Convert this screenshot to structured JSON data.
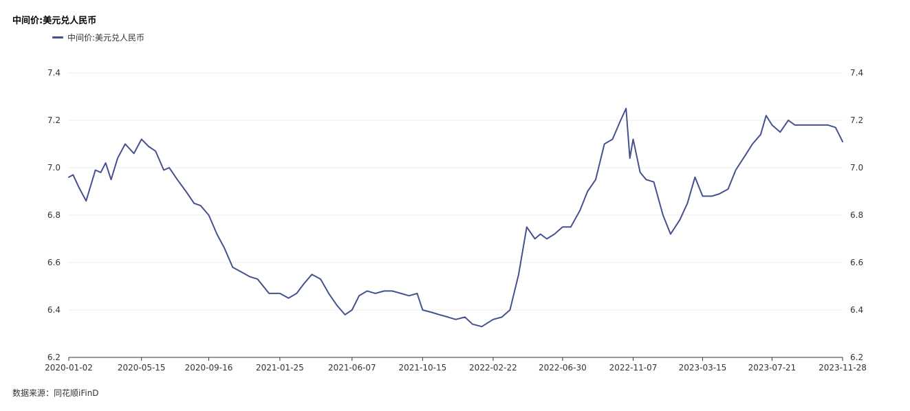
{
  "title": "中间价:美元兑人民币",
  "source": "数据来源：同花顺iFinD",
  "colors": {
    "series": "#45508f",
    "grid": "#eeeeee",
    "axis": "#333333"
  },
  "chart_data": {
    "type": "line",
    "title": "中间价:美元兑人民币",
    "legend_position": "top-left",
    "grid": true,
    "ylim": [
      6.2,
      7.4
    ],
    "yticks": [
      "7.4",
      "7.2",
      "7.0",
      "6.8",
      "6.6",
      "6.4",
      "6.2"
    ],
    "yticks_right": [
      "7.4",
      "7.2",
      "7.0",
      "6.8",
      "6.6",
      "6.4",
      "6.2"
    ],
    "xticks": [
      "2020-01-02",
      "2020-05-15",
      "2020-09-16",
      "2021-01-25",
      "2021-06-07",
      "2021-10-15",
      "2022-02-22",
      "2022-06-30",
      "2022-11-07",
      "2023-03-15",
      "2023-07-21",
      "2023-11-28"
    ],
    "series": [
      {
        "name": "中间价:美元兑人民币",
        "x": [
          "2020-01-02",
          "2020-01-10",
          "2020-01-20",
          "2020-02-03",
          "2020-02-20",
          "2020-03-01",
          "2020-03-10",
          "2020-03-20",
          "2020-04-01",
          "2020-04-15",
          "2020-05-01",
          "2020-05-15",
          "2020-05-28",
          "2020-06-10",
          "2020-06-25",
          "2020-07-05",
          "2020-07-20",
          "2020-08-05",
          "2020-08-20",
          "2020-09-01",
          "2020-09-16",
          "2020-10-01",
          "2020-10-15",
          "2020-10-30",
          "2020-11-15",
          "2020-12-01",
          "2020-12-15",
          "2021-01-05",
          "2021-01-25",
          "2021-02-10",
          "2021-02-25",
          "2021-03-10",
          "2021-03-25",
          "2021-04-10",
          "2021-04-25",
          "2021-05-10",
          "2021-05-25",
          "2021-06-07",
          "2021-06-20",
          "2021-07-05",
          "2021-07-20",
          "2021-08-05",
          "2021-08-20",
          "2021-09-05",
          "2021-09-20",
          "2021-10-05",
          "2021-10-15",
          "2021-11-01",
          "2021-11-15",
          "2021-12-01",
          "2021-12-15",
          "2022-01-01",
          "2022-01-15",
          "2022-02-01",
          "2022-02-22",
          "2022-03-10",
          "2022-03-25",
          "2022-04-10",
          "2022-04-25",
          "2022-05-10",
          "2022-05-20",
          "2022-06-01",
          "2022-06-15",
          "2022-06-30",
          "2022-07-15",
          "2022-08-01",
          "2022-08-15",
          "2022-08-30",
          "2022-09-15",
          "2022-09-30",
          "2022-10-15",
          "2022-10-25",
          "2022-11-01",
          "2022-11-07",
          "2022-11-20",
          "2022-12-01",
          "2022-12-15",
          "2023-01-01",
          "2023-01-15",
          "2023-02-01",
          "2023-02-15",
          "2023-03-01",
          "2023-03-15",
          "2023-04-01",
          "2023-04-15",
          "2023-05-01",
          "2023-05-15",
          "2023-06-01",
          "2023-06-15",
          "2023-06-30",
          "2023-07-10",
          "2023-07-21",
          "2023-08-05",
          "2023-08-20",
          "2023-09-01",
          "2023-09-15",
          "2023-10-01",
          "2023-10-15",
          "2023-11-01",
          "2023-11-15",
          "2023-11-28"
        ],
        "values": [
          6.96,
          6.97,
          6.92,
          6.86,
          6.99,
          6.98,
          7.02,
          6.95,
          7.04,
          7.1,
          7.06,
          7.12,
          7.09,
          7.07,
          6.99,
          7.0,
          6.95,
          6.9,
          6.85,
          6.84,
          6.8,
          6.72,
          6.66,
          6.58,
          6.56,
          6.54,
          6.53,
          6.47,
          6.47,
          6.45,
          6.47,
          6.51,
          6.55,
          6.53,
          6.47,
          6.42,
          6.38,
          6.4,
          6.46,
          6.48,
          6.47,
          6.48,
          6.48,
          6.47,
          6.46,
          6.47,
          6.4,
          6.39,
          6.38,
          6.37,
          6.36,
          6.37,
          6.34,
          6.33,
          6.36,
          6.37,
          6.4,
          6.55,
          6.75,
          6.7,
          6.72,
          6.7,
          6.72,
          6.75,
          6.75,
          6.82,
          6.9,
          6.95,
          7.1,
          7.12,
          7.2,
          7.25,
          7.04,
          7.12,
          6.98,
          6.95,
          6.94,
          6.8,
          6.72,
          6.78,
          6.85,
          6.96,
          6.88,
          6.88,
          6.89,
          6.91,
          6.99,
          7.05,
          7.1,
          7.14,
          7.22,
          7.18,
          7.15,
          7.2,
          7.18,
          7.18,
          7.18,
          7.18,
          7.18,
          7.17,
          7.11
        ]
      }
    ]
  }
}
